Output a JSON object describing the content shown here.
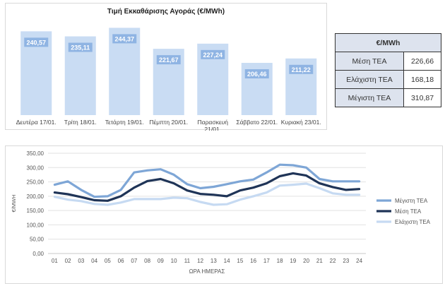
{
  "chart_data": [
    {
      "type": "bar",
      "title": "Τιμή Εκκαθάρισης Αγοράς (€/MWh)",
      "categories": [
        "Δευτέρα 17/01.",
        "Τρίτη 18/01.",
        "Τετάρτη 19/01.",
        "Πέμπτη 20/01.",
        "Παρασκευή 21/01.",
        "Σάββατο 22/01.",
        "Κυριακή 23/01."
      ],
      "category_lines": [
        [
          "Δευτέρα 17/01."
        ],
        [
          "Τρίτη 18/01."
        ],
        [
          "Τετάρτη 19/01."
        ],
        [
          "Πέμπτη 20/01."
        ],
        [
          "Παρασκευή",
          "21/01."
        ],
        [
          "Σάββατο 22/01."
        ],
        [
          "Κυριακή 23/01."
        ]
      ],
      "values": [
        240.57,
        235.11,
        244.37,
        221.67,
        227.24,
        206.46,
        211.22
      ],
      "value_labels": [
        "240,57",
        "235,11",
        "244,37",
        "221,67",
        "227,24",
        "206,46",
        "211,22"
      ],
      "ylim": [
        150,
        250
      ],
      "colors": {
        "bar": "#c9dcf3",
        "label_bg": "#8fb4e3",
        "label_text": "#ffffff"
      }
    },
    {
      "type": "line",
      "xlabel": "ΩΡΑ ΗΜΕΡΑΣ",
      "ylabel": "€/MWH",
      "x": [
        "01",
        "02",
        "03",
        "04",
        "05",
        "06",
        "07",
        "08",
        "09",
        "10",
        "11",
        "12",
        "13",
        "14",
        "15",
        "16",
        "17",
        "18",
        "19",
        "20",
        "21",
        "22",
        "23",
        "24"
      ],
      "yticks": [
        "0,00",
        "50,00",
        "100,00",
        "150,00",
        "200,00",
        "250,00",
        "300,00",
        "350,00"
      ],
      "ylim": [
        0,
        350
      ],
      "grid": true,
      "legend_position": "right",
      "series": [
        {
          "name": "Μέγιστη ΤΕΑ",
          "color": "#7ea6d6",
          "values": [
            240,
            252,
            222,
            198,
            200,
            222,
            283,
            290,
            294,
            275,
            242,
            228,
            233,
            242,
            252,
            258,
            283,
            310,
            308,
            300,
            260,
            252,
            252,
            252
          ]
        },
        {
          "name": "Μέση ΤΕΑ",
          "color": "#1f3457",
          "values": [
            213,
            207,
            197,
            186,
            184,
            200,
            230,
            253,
            260,
            245,
            220,
            208,
            205,
            200,
            220,
            230,
            245,
            270,
            280,
            272,
            245,
            232,
            222,
            225
          ]
        },
        {
          "name": "Ελάχιστη ΤΕΑ",
          "color": "#c6daf2",
          "values": [
            198,
            188,
            183,
            173,
            170,
            178,
            190,
            190,
            190,
            195,
            193,
            180,
            170,
            172,
            188,
            200,
            213,
            237,
            240,
            244,
            228,
            210,
            205,
            205
          ]
        }
      ]
    }
  ],
  "stats_table": {
    "header": "€/MWh",
    "rows": [
      {
        "label": "Μέση ΤΕΑ",
        "value": "226,66"
      },
      {
        "label": "Ελάχιστη ΤΕΑ",
        "value": "168,18"
      },
      {
        "label": "Μέγιστη ΤΕΑ",
        "value": "310,87"
      }
    ]
  }
}
